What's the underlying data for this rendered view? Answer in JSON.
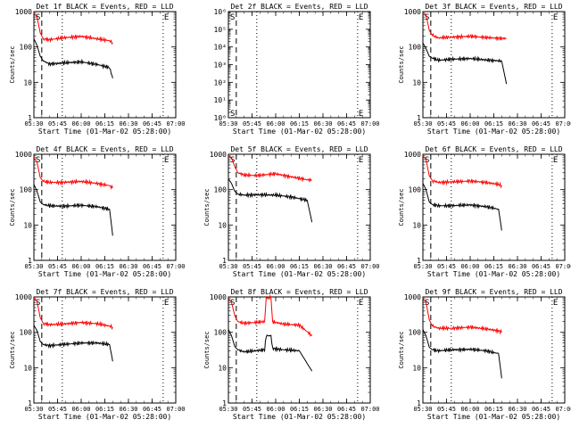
{
  "chart_data": [
    {
      "type": "line",
      "title": "Det 1f BLACK = Events, RED = LLD",
      "xlabel": "Start Time (01-Mar-02 05:28:00)",
      "ylabel": "Counts/sec",
      "yscale": "log",
      "ylim": [
        1,
        1000
      ],
      "xlim": [
        "05:30",
        "07:00"
      ],
      "xticks": [
        "05:30",
        "05:45",
        "06:00",
        "06:15",
        "06:30",
        "06:45",
        "07:00"
      ],
      "yticks": [
        "1",
        "10",
        "100",
        "1000"
      ],
      "markers": {
        "S": "05:30",
        "E": "06:52"
      },
      "vlines_dashed": [
        "05:35"
      ],
      "vlines_dotted": [
        "05:48",
        "06:52"
      ],
      "series": [
        {
          "color": "#ff0000",
          "x": [
            "05:30",
            "05:32",
            "05:34",
            "05:36",
            "05:40",
            "05:48",
            "06:00",
            "06:10",
            "06:18",
            "06:20"
          ],
          "values": [
            900,
            700,
            250,
            170,
            160,
            180,
            200,
            170,
            150,
            130
          ]
        },
        {
          "color": "#000000",
          "x": [
            "05:30",
            "05:32",
            "05:34",
            "05:36",
            "05:40",
            "05:48",
            "06:00",
            "06:10",
            "06:18",
            "06:20"
          ],
          "values": [
            170,
            110,
            55,
            40,
            33,
            35,
            38,
            32,
            26,
            13
          ]
        }
      ]
    },
    {
      "type": "line",
      "title": "Det 2f BLACK = Events, RED = LLD",
      "xlabel": "Start Time (01-Mar-02 05:28:00)",
      "ylabel": "",
      "yscale": "log",
      "ylim": [
        1,
        1000000
      ],
      "xlim": [
        "05:30",
        "07:00"
      ],
      "xticks": [
        "05:30",
        "05:45",
        "06:00",
        "06:15",
        "06:30",
        "06:45",
        "07:00"
      ],
      "yticks": [
        "10⁰",
        "10¹",
        "10²",
        "10³",
        "10⁴",
        "10⁵",
        "10⁶"
      ],
      "markers": {
        "S": "05:30",
        "E": "06:52"
      },
      "vlines_dashed": [
        "05:35"
      ],
      "vlines_dotted": [
        "05:48",
        "06:52"
      ],
      "series": []
    },
    {
      "type": "line",
      "title": "Det 3f BLACK = Events, RED = LLD",
      "xlabel": "Start Time (01-Mar-02 05:28:00)",
      "ylabel": "Counts/sec",
      "yscale": "log",
      "ylim": [
        1,
        1000
      ],
      "xlim": [
        "05:30",
        "07:00"
      ],
      "xticks": [
        "05:30",
        "05:45",
        "06:00",
        "06:15",
        "06:30",
        "06:45",
        "07:00"
      ],
      "yticks": [
        "1",
        "10",
        "100",
        "1000"
      ],
      "markers": {
        "S": "05:30",
        "E": "06:52"
      },
      "vlines_dashed": [
        "05:35"
      ],
      "vlines_dotted": [
        "05:48",
        "06:52"
      ],
      "series": [
        {
          "color": "#ff0000",
          "x": [
            "05:30",
            "05:32",
            "05:34",
            "05:36",
            "05:40",
            "05:48",
            "06:00",
            "06:10",
            "06:20",
            "06:23"
          ],
          "values": [
            950,
            800,
            300,
            210,
            180,
            190,
            200,
            185,
            175,
            175
          ]
        },
        {
          "color": "#000000",
          "x": [
            "05:30",
            "05:32",
            "05:34",
            "05:36",
            "05:40",
            "05:48",
            "06:00",
            "06:10",
            "06:20",
            "06:23"
          ],
          "values": [
            130,
            90,
            55,
            48,
            42,
            45,
            47,
            43,
            40,
            9
          ]
        }
      ]
    },
    {
      "type": "line",
      "title": "Det 4f BLACK = Events, RED = LLD",
      "xlabel": "Start Time (01-Mar-02 05:28:00)",
      "ylabel": "Counts/sec",
      "yscale": "log",
      "ylim": [
        1,
        1000
      ],
      "xlim": [
        "05:30",
        "07:00"
      ],
      "xticks": [
        "05:30",
        "05:45",
        "06:00",
        "06:15",
        "06:30",
        "06:45",
        "07:00"
      ],
      "yticks": [
        "1",
        "10",
        "100",
        "1000"
      ],
      "markers": {
        "S": "05:30",
        "E": "06:52"
      },
      "vlines_dashed": [
        "05:35"
      ],
      "vlines_dotted": [
        "05:48",
        "06:52"
      ],
      "series": [
        {
          "color": "#ff0000",
          "x": [
            "05:30",
            "05:32",
            "05:34",
            "05:36",
            "05:40",
            "05:48",
            "06:00",
            "06:10",
            "06:18",
            "06:20"
          ],
          "values": [
            800,
            600,
            220,
            170,
            160,
            160,
            170,
            150,
            130,
            110
          ]
        },
        {
          "color": "#000000",
          "x": [
            "05:30",
            "05:32",
            "05:34",
            "05:36",
            "05:40",
            "05:48",
            "06:00",
            "06:10",
            "06:18",
            "06:20"
          ],
          "values": [
            140,
            90,
            45,
            38,
            35,
            34,
            36,
            33,
            28,
            5
          ]
        }
      ]
    },
    {
      "type": "line",
      "title": "Det 5f BLACK = Events, RED = LLD",
      "xlabel": "Start Time (01-Mar-02 05:28:00)",
      "ylabel": "Counts/sec",
      "yscale": "log",
      "ylim": [
        1,
        1000
      ],
      "xlim": [
        "05:30",
        "07:00"
      ],
      "xticks": [
        "05:30",
        "05:45",
        "06:00",
        "06:15",
        "06:30",
        "06:45",
        "07:00"
      ],
      "yticks": [
        "1",
        "10",
        "100",
        "1000"
      ],
      "markers": {
        "S": "05:30",
        "E": "06:52"
      },
      "vlines_dashed": [
        "05:35"
      ],
      "vlines_dotted": [
        "05:48",
        "06:52"
      ],
      "series": [
        {
          "color": "#ff0000",
          "x": [
            "05:30",
            "05:32",
            "05:34",
            "05:36",
            "05:40",
            "05:48",
            "06:00",
            "06:10",
            "06:20",
            "06:23"
          ],
          "values": [
            900,
            800,
            450,
            300,
            260,
            250,
            280,
            230,
            190,
            185
          ]
        },
        {
          "color": "#000000",
          "x": [
            "05:30",
            "05:32",
            "05:34",
            "05:36",
            "05:40",
            "05:48",
            "06:00",
            "06:10",
            "06:20",
            "06:23"
          ],
          "values": [
            200,
            150,
            90,
            75,
            70,
            72,
            70,
            62,
            50,
            12
          ]
        }
      ]
    },
    {
      "type": "line",
      "title": "Det 6f BLACK = Events, RED = LLD",
      "xlabel": "Start Time (01-Mar-02 05:28:00)",
      "ylabel": "Counts/sec",
      "yscale": "log",
      "ylim": [
        1,
        1000
      ],
      "xlim": [
        "05:30",
        "07:00"
      ],
      "xticks": [
        "05:30",
        "05:45",
        "06:00",
        "06:15",
        "06:30",
        "06:45",
        "07:00"
      ],
      "yticks": [
        "1",
        "10",
        "100",
        "1000"
      ],
      "markers": {
        "S": "05:30",
        "E": "06:52"
      },
      "vlines_dashed": [
        "05:35"
      ],
      "vlines_dotted": [
        "05:48",
        "06:52"
      ],
      "series": [
        {
          "color": "#ff0000",
          "x": [
            "05:30",
            "05:32",
            "05:34",
            "05:36",
            "05:40",
            "05:48",
            "06:00",
            "06:10",
            "06:18",
            "06:20"
          ],
          "values": [
            900,
            700,
            250,
            180,
            160,
            165,
            175,
            160,
            140,
            130
          ]
        },
        {
          "color": "#000000",
          "x": [
            "05:30",
            "05:32",
            "05:34",
            "05:36",
            "05:40",
            "05:48",
            "06:00",
            "06:10",
            "06:18",
            "06:20"
          ],
          "values": [
            150,
            100,
            45,
            38,
            35,
            35,
            37,
            33,
            28,
            7
          ]
        }
      ]
    },
    {
      "type": "line",
      "title": "Det 7f BLACK = Events, RED = LLD",
      "xlabel": "Start Time (01-Mar-02 05:28:00)",
      "ylabel": "Counts/sec",
      "yscale": "log",
      "ylim": [
        1,
        1000
      ],
      "xlim": [
        "05:30",
        "07:00"
      ],
      "xticks": [
        "05:30",
        "05:45",
        "06:00",
        "06:15",
        "06:30",
        "06:45",
        "07:00"
      ],
      "yticks": [
        "1",
        "10",
        "100",
        "1000"
      ],
      "markers": {
        "S": "05:30",
        "E": "06:52"
      },
      "vlines_dashed": [
        "05:35"
      ],
      "vlines_dotted": [
        "05:48",
        "06:52"
      ],
      "series": [
        {
          "color": "#ff0000",
          "x": [
            "05:30",
            "05:32",
            "05:34",
            "05:36",
            "05:40",
            "05:48",
            "06:00",
            "06:10",
            "06:18",
            "06:20"
          ],
          "values": [
            950,
            750,
            260,
            180,
            165,
            170,
            190,
            175,
            150,
            140
          ]
        },
        {
          "color": "#000000",
          "x": [
            "05:30",
            "05:32",
            "05:34",
            "05:36",
            "05:40",
            "05:48",
            "06:00",
            "06:10",
            "06:18",
            "06:20"
          ],
          "values": [
            160,
            110,
            55,
            45,
            42,
            45,
            50,
            50,
            45,
            15
          ]
        }
      ]
    },
    {
      "type": "line",
      "title": "Det 8f BLACK = Events, RED = LLD",
      "xlabel": "Start Time (01-Mar-02 05:28:00)",
      "ylabel": "Counts/sec",
      "yscale": "log",
      "ylim": [
        1,
        1000
      ],
      "xlim": [
        "05:30",
        "07:00"
      ],
      "xticks": [
        "05:30",
        "05:45",
        "06:00",
        "06:15",
        "06:30",
        "06:45",
        "07:00"
      ],
      "yticks": [
        "1",
        "10",
        "100",
        "1000"
      ],
      "markers": {
        "S": "05:30",
        "E": "06:52"
      },
      "vlines_dashed": [
        "05:35"
      ],
      "vlines_dotted": [
        "05:48",
        "06:52"
      ],
      "series": [
        {
          "color": "#ff0000",
          "x": [
            "05:30",
            "05:32",
            "05:34",
            "05:36",
            "05:40",
            "05:47",
            "05:53",
            "05:54",
            "05:57",
            "05:58",
            "06:05",
            "06:15",
            "06:23"
          ],
          "values": [
            900,
            700,
            300,
            200,
            180,
            190,
            200,
            950,
            950,
            200,
            170,
            160,
            80
          ]
        },
        {
          "color": "#000000",
          "x": [
            "05:30",
            "05:32",
            "05:34",
            "05:36",
            "05:40",
            "05:47",
            "05:53",
            "05:54",
            "05:57",
            "05:58",
            "06:05",
            "06:15",
            "06:23"
          ],
          "values": [
            120,
            80,
            40,
            32,
            28,
            30,
            32,
            80,
            80,
            35,
            32,
            30,
            8
          ]
        }
      ]
    },
    {
      "type": "line",
      "title": "Det 9f BLACK = Events, RED = LLD",
      "xlabel": "Start Time (01-Mar-02 05:28:00)",
      "ylabel": "Counts/sec",
      "yscale": "log",
      "ylim": [
        1,
        1000
      ],
      "xlim": [
        "05:30",
        "07:00"
      ],
      "xticks": [
        "05:30",
        "05:45",
        "06:00",
        "06:15",
        "06:30",
        "06:45",
        "07:00"
      ],
      "yticks": [
        "1",
        "10",
        "100",
        "1000"
      ],
      "markers": {
        "S": "05:30",
        "E": "06:52"
      },
      "vlines_dashed": [
        "05:35"
      ],
      "vlines_dotted": [
        "05:48",
        "06:52"
      ],
      "series": [
        {
          "color": "#ff0000",
          "x": [
            "05:30",
            "05:32",
            "05:34",
            "05:36",
            "05:40",
            "05:48",
            "06:00",
            "06:10",
            "06:18",
            "06:20"
          ],
          "values": [
            900,
            700,
            230,
            150,
            130,
            130,
            140,
            125,
            110,
            100
          ]
        },
        {
          "color": "#000000",
          "x": [
            "05:30",
            "05:32",
            "05:34",
            "05:36",
            "05:40",
            "05:48",
            "06:00",
            "06:10",
            "06:18",
            "06:20"
          ],
          "values": [
            120,
            80,
            38,
            32,
            30,
            32,
            33,
            30,
            25,
            5
          ]
        }
      ]
    }
  ]
}
